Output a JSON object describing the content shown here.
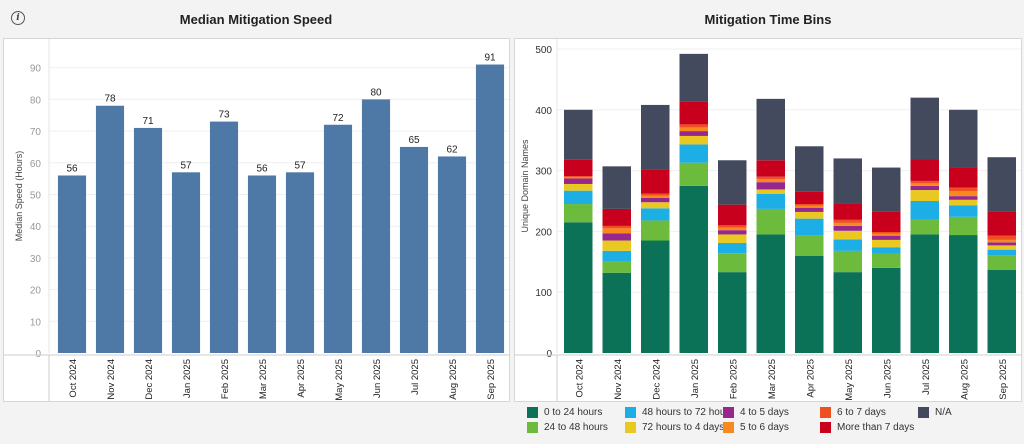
{
  "info_icon": "info-icon",
  "chart_data": [
    {
      "type": "bar",
      "title": "Median Mitigation Speed",
      "xlabel": "",
      "ylabel": "Median Speed (Hours)",
      "ylim": [
        0,
        95
      ],
      "yticks": [
        0,
        10,
        20,
        30,
        40,
        50,
        60,
        70,
        80,
        90
      ],
      "grid": true,
      "color": "#4e79a7",
      "categories": [
        "Oct 2024",
        "Nov 2024",
        "Dec 2024",
        "Jan 2025",
        "Feb 2025",
        "Mar 2025",
        "Apr 2025",
        "May 2025",
        "Jun 2025",
        "Jul 2025",
        "Aug 2025",
        "Sep 2025"
      ],
      "values": [
        56,
        78,
        71,
        57,
        73,
        56,
        57,
        72,
        80,
        65,
        62,
        91
      ],
      "data_labels": [
        "56",
        "78",
        "71",
        "57",
        "73",
        "56",
        "57",
        "72",
        "80",
        "65",
        "62",
        "91"
      ]
    },
    {
      "type": "bar",
      "stacked": true,
      "title": "Mitigation Time Bins",
      "xlabel": "",
      "ylabel": "Unique Domain Names",
      "ylim": [
        0,
        510
      ],
      "yticks": [
        0,
        100,
        200,
        300,
        400,
        500
      ],
      "grid": true,
      "legend_position": "bottom",
      "categories": [
        "Oct 2024",
        "Nov 2024",
        "Dec 2024",
        "Jan 2025",
        "Feb 2025",
        "Mar 2025",
        "Apr 2025",
        "May 2025",
        "Jun 2025",
        "Jul 2025",
        "Aug 2025",
        "Sep 2025"
      ],
      "series": [
        {
          "name": "0 to 24 hours",
          "color": "#0b7157",
          "values": [
            215,
            132,
            185,
            275,
            133,
            195,
            160,
            133,
            140,
            195,
            194,
            137
          ]
        },
        {
          "name": "24 to 48 hours",
          "color": "#6cbb3c",
          "values": [
            30,
            18,
            33,
            38,
            31,
            42,
            33,
            35,
            23,
            24,
            30,
            23
          ]
        },
        {
          "name": "48 hours to 72 hou...",
          "color": "#1eaee6",
          "values": [
            22,
            18,
            20,
            30,
            17,
            25,
            28,
            19,
            11,
            31,
            19,
            10
          ]
        },
        {
          "name": "72 hours to 4 days",
          "color": "#e9c921",
          "values": [
            11,
            17,
            10,
            14,
            14,
            7,
            11,
            14,
            12,
            18,
            9,
            7
          ]
        },
        {
          "name": "4 to 5 days",
          "color": "#97278f",
          "values": [
            9,
            12,
            7,
            8,
            7,
            12,
            7,
            8,
            7,
            7,
            6,
            5
          ]
        },
        {
          "name": "5 to 6 days",
          "color": "#f7891f",
          "values": [
            2,
            8,
            4,
            6,
            4,
            5,
            3,
            5,
            3,
            4,
            8,
            4
          ]
        },
        {
          "name": "6 to 7 days",
          "color": "#ef5022",
          "values": [
            2,
            4,
            3,
            5,
            4,
            4,
            3,
            5,
            3,
            4,
            6,
            7
          ]
        },
        {
          "name": "More than 7 days",
          "color": "#c8001e",
          "values": [
            27,
            28,
            40,
            38,
            34,
            27,
            21,
            27,
            34,
            36,
            33,
            39
          ]
        },
        {
          "name": "N/A",
          "color": "#434a5e",
          "values": [
            82,
            70,
            106,
            78,
            73,
            101,
            74,
            74,
            72,
            101,
            95,
            90
          ]
        }
      ]
    }
  ]
}
